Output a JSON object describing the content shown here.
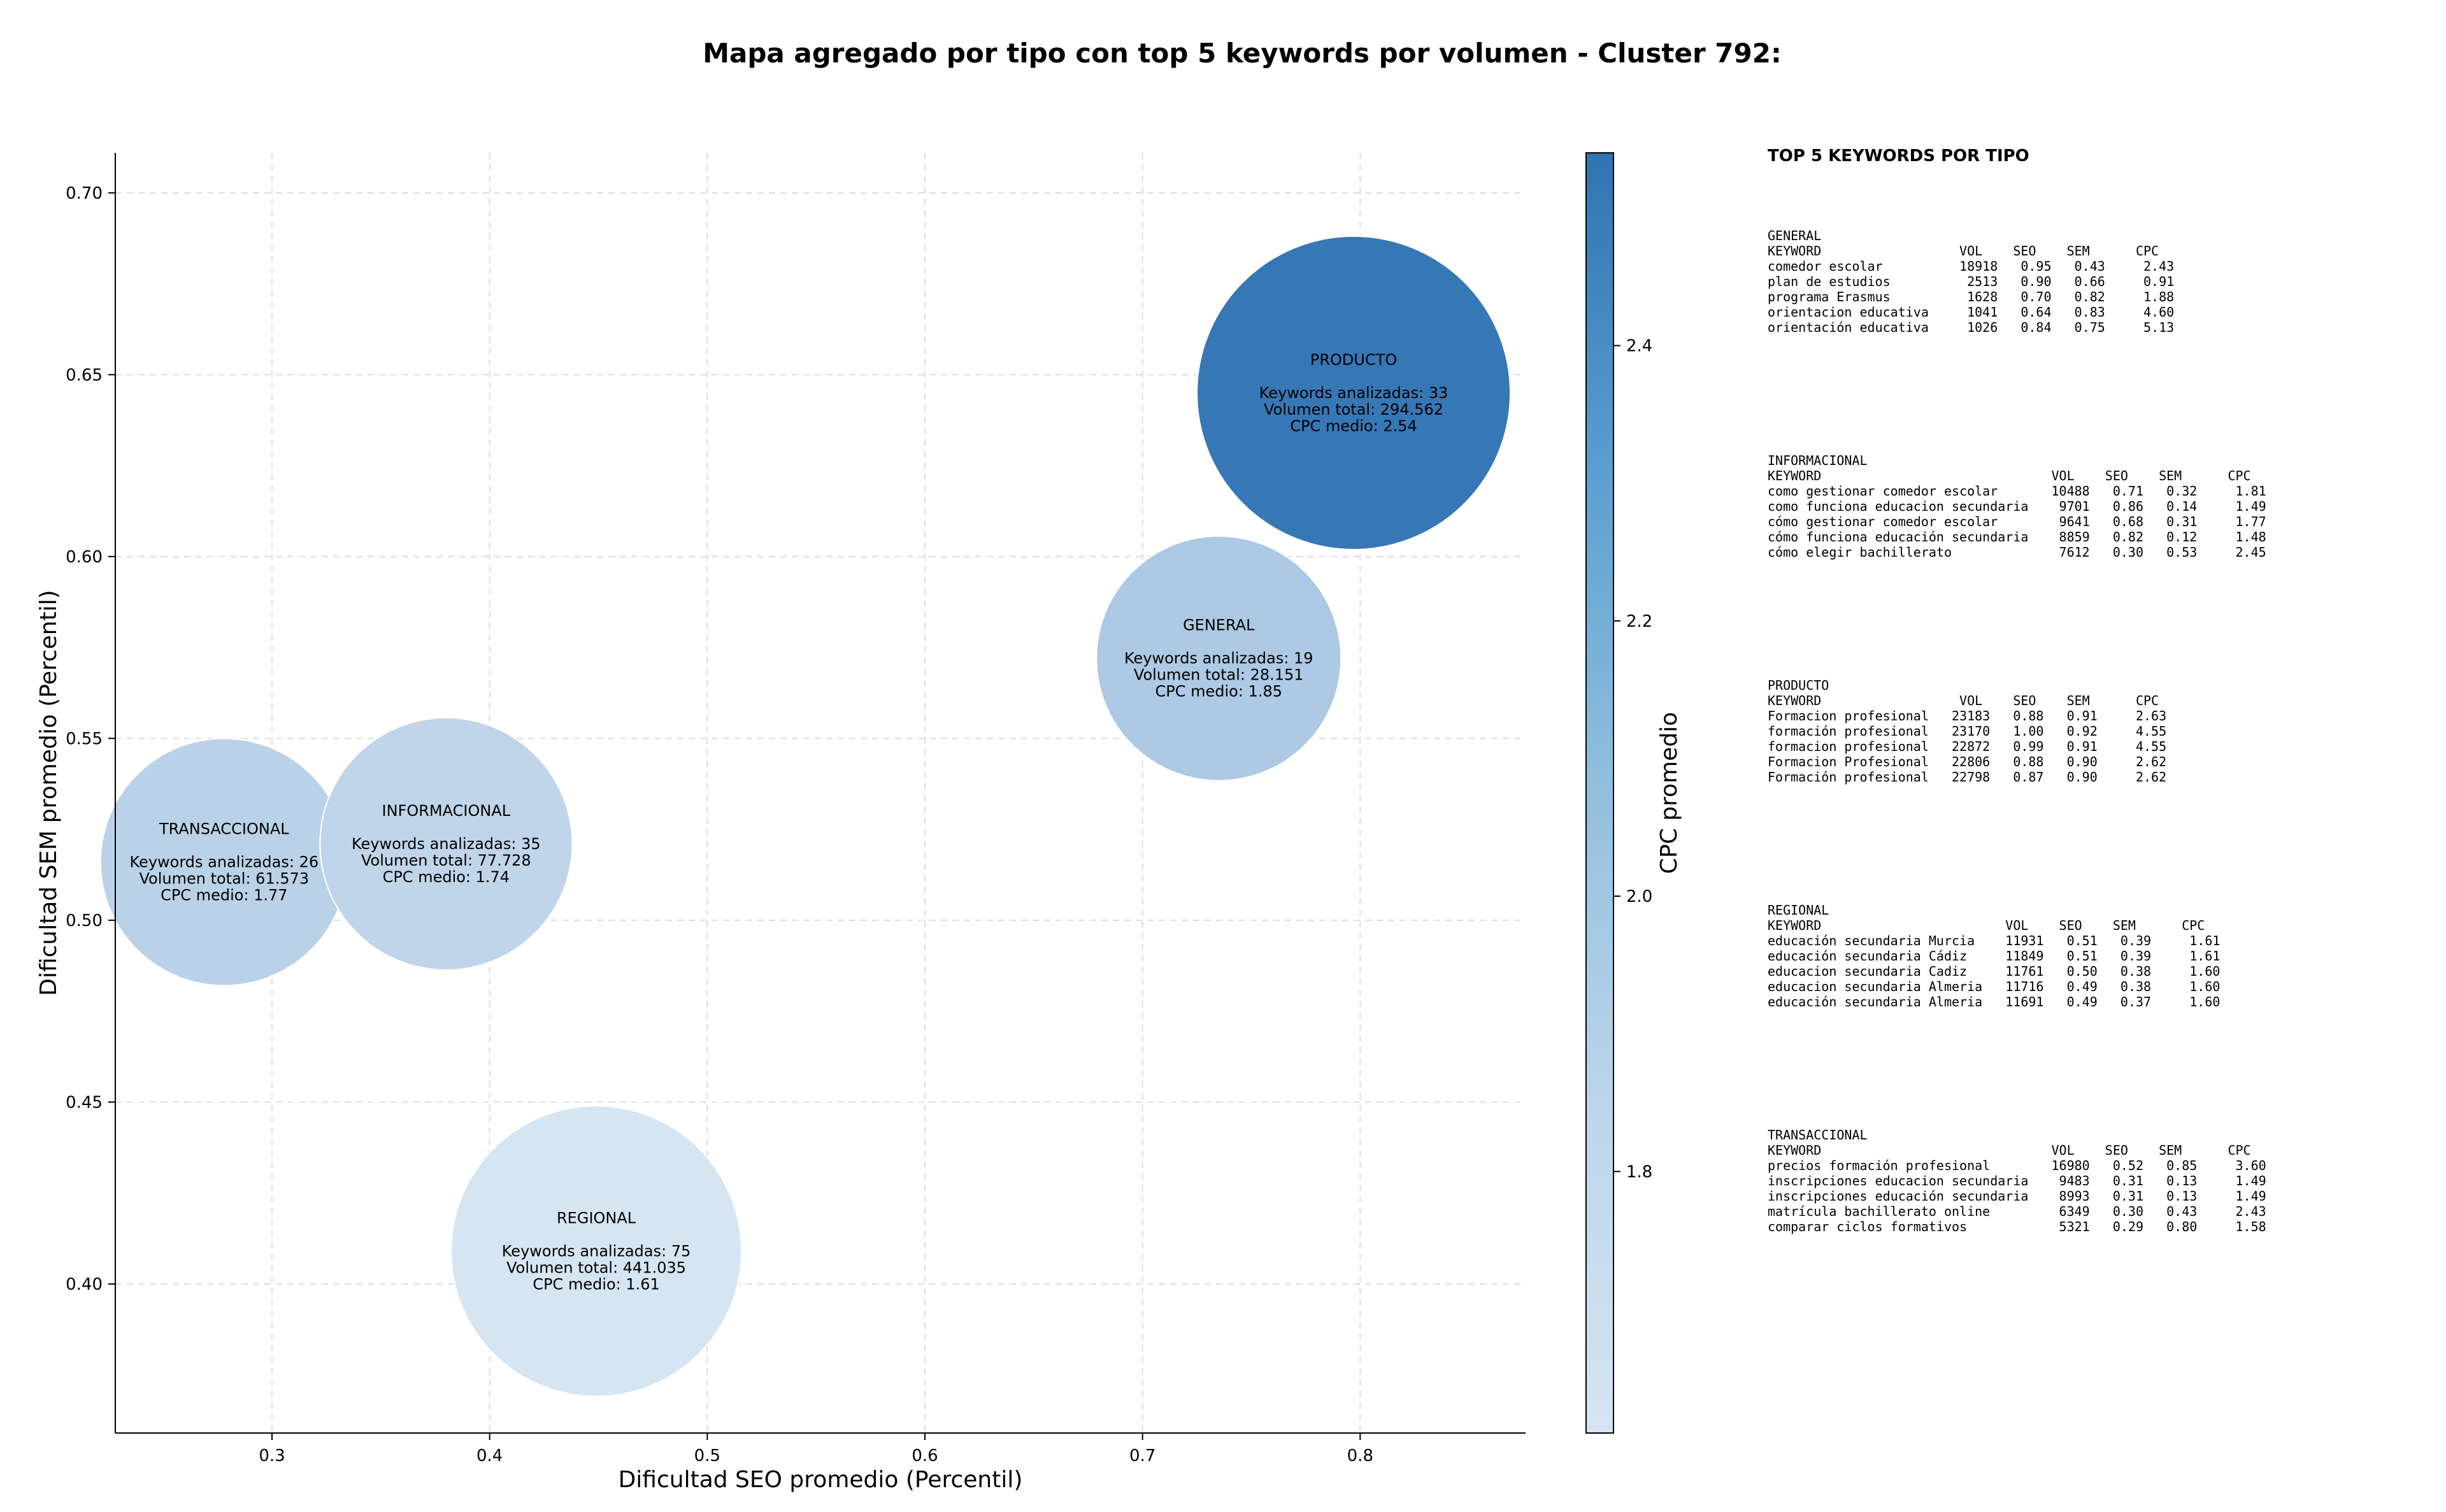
{
  "chart_data": {
    "type": "scatter",
    "title": "Mapa agregado por tipo con top 5 keywords por volumen - Cluster 792:",
    "xlabel": "Dificultad SEO promedio (Percentil)",
    "ylabel": "Dificultad SEM promedio (Percentil)",
    "xlim": [
      0.228,
      0.876
    ],
    "ylim": [
      0.359,
      0.711
    ],
    "xticks": [
      0.3,
      0.4,
      0.5,
      0.6,
      0.7,
      0.8
    ],
    "xtick_labels": [
      "0.3",
      "0.4",
      "0.5",
      "0.6",
      "0.7",
      "0.8"
    ],
    "yticks": [
      0.4,
      0.45,
      0.5,
      0.55,
      0.6,
      0.65,
      0.7
    ],
    "ytick_labels": [
      "0.40",
      "0.45",
      "0.50",
      "0.55",
      "0.60",
      "0.65",
      "0.70"
    ],
    "grid": true,
    "colorbar": {
      "label": "CPC promedio",
      "range": [
        1.61,
        2.54
      ],
      "ticks": [
        1.8,
        2.0,
        2.2,
        2.4
      ],
      "tick_labels": [
        "1.8",
        "2.0",
        "2.2",
        "2.4"
      ],
      "colors": [
        "#d5e4f2",
        "#2f73b3"
      ]
    },
    "points": [
      {
        "type": "PRODUCTO",
        "x": 0.797,
        "y": 0.645,
        "keywords": 33,
        "volume": "294.562",
        "volume_value": 294562,
        "cpc": 2.54,
        "lines": [
          "PRODUCTO",
          "",
          "Keywords analizadas: 33",
          "Volumen total: 294.562",
          "CPC medio: 2.54"
        ]
      },
      {
        "type": "GENERAL",
        "x": 0.735,
        "y": 0.572,
        "keywords": 19,
        "volume": "28.151",
        "volume_value": 28151,
        "cpc": 1.85,
        "lines": [
          "GENERAL",
          "",
          "Keywords analizadas: 19",
          "Volumen total: 28.151",
          "CPC medio: 1.85"
        ]
      },
      {
        "type": "TRANSACCIONAL",
        "x": 0.278,
        "y": 0.516,
        "keywords": 26,
        "volume": "61.573",
        "volume_value": 61573,
        "cpc": 1.77,
        "lines": [
          "TRANSACCIONAL",
          "",
          "Keywords analizadas: 26",
          "Volumen total: 61.573",
          "CPC medio: 1.77"
        ]
      },
      {
        "type": "INFORMACIONAL",
        "x": 0.38,
        "y": 0.521,
        "keywords": 35,
        "volume": "77.728",
        "volume_value": 77728,
        "cpc": 1.74,
        "lines": [
          "INFORMACIONAL",
          "",
          "Keywords analizadas: 35",
          "Volumen total: 77.728",
          "CPC medio: 1.74"
        ]
      },
      {
        "type": "REGIONAL",
        "x": 0.449,
        "y": 0.409,
        "keywords": 75,
        "volume": "441.035",
        "volume_value": 441035,
        "cpc": 1.61,
        "lines": [
          "REGIONAL",
          "",
          "Keywords analizadas: 75",
          "Volumen total: 441.035",
          "CPC medio: 1.61"
        ]
      }
    ]
  },
  "side_panel": {
    "title": "TOP 5 KEYWORDS POR TIPO",
    "blocks": [
      {
        "name": "GENERAL",
        "text": "GENERAL\nKEYWORD                  VOL    SEO    SEM      CPC\ncomedor escolar          18918   0.95   0.43     2.43\nplan de estudios          2513   0.90   0.66     0.91\nprograma Erasmus          1628   0.70   0.82     1.88\norientacion educativa     1041   0.64   0.83     4.60\norientación educativa     1026   0.84   0.75     5.13"
      },
      {
        "name": "INFORMACIONAL",
        "text": "INFORMACIONAL\nKEYWORD                              VOL    SEO    SEM      CPC\ncomo gestionar comedor escolar       10488   0.71   0.32     1.81\ncomo funciona educacion secundaria    9701   0.86   0.14     1.49\ncómo gestionar comedor escolar        9641   0.68   0.31     1.77\ncómo funciona educación secundaria    8859   0.82   0.12     1.48\ncómo elegir bachillerato              7612   0.30   0.53     2.45"
      },
      {
        "name": "PRODUCTO",
        "text": "PRODUCTO\nKEYWORD                  VOL    SEO    SEM      CPC\nFormacion profesional   23183   0.88   0.91     2.63\nformación profesional   23170   1.00   0.92     4.55\nformacion profesional   22872   0.99   0.91     4.55\nFormacion Profesional   22806   0.88   0.90     2.62\nFormación profesional   22798   0.87   0.90     2.62"
      },
      {
        "name": "REGIONAL",
        "text": "REGIONAL\nKEYWORD                        VOL    SEO    SEM      CPC\neducación secundaria Murcia    11931   0.51   0.39     1.61\neducación secundaria Cádiz     11849   0.51   0.39     1.61\neducacion secundaria Cadiz     11761   0.50   0.38     1.60\neducacion secundaria Almeria   11716   0.49   0.38     1.60\neducación secundaria Almeria   11691   0.49   0.37     1.60"
      },
      {
        "name": "TRANSACCIONAL",
        "text": "TRANSACCIONAL\nKEYWORD                              VOL    SEO    SEM      CPC\nprecios formación profesional        16980   0.52   0.85     3.60\ninscripciones educacion secundaria    9483   0.31   0.13     1.49\ninscripciones educación secundaria    8993   0.31   0.13     1.49\nmatrícula bachillerato online         6349   0.30   0.43     2.43\ncomparar ciclos formativos            5321   0.29   0.80     1.58"
      }
    ]
  }
}
